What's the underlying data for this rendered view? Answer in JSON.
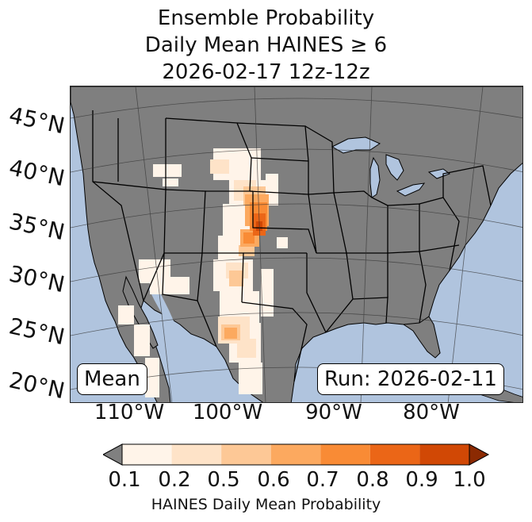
{
  "title": {
    "line1": "Ensemble Probability",
    "line2": "Daily Mean HAINES ≥ 6",
    "line3": "2026-02-17 12z-12z"
  },
  "map": {
    "lat_labels": [
      "45°N",
      "40°N",
      "35°N",
      "30°N",
      "25°N",
      "20°N"
    ],
    "lon_labels": [
      "110°W",
      "100°W",
      "90°W",
      "80°W"
    ],
    "stat_label": "Mean",
    "run_label": "Run: 2026-02-11",
    "colors": {
      "ocean": "#b0c4de",
      "land": "#7f7f7f",
      "border": "#000000"
    }
  },
  "colorbar": {
    "ticks": [
      "0.1",
      "0.2",
      "0.5",
      "0.6",
      "0.7",
      "0.8",
      "0.9",
      "1.0"
    ],
    "colors": [
      "#fff4e9",
      "#fee3c8",
      "#fdc896",
      "#fca95f",
      "#f98b35",
      "#eb6617",
      "#d14805"
    ],
    "under_color": "#808080",
    "over_color": "#8b2a02",
    "label": "HAINES Daily Mean Probability"
  }
}
